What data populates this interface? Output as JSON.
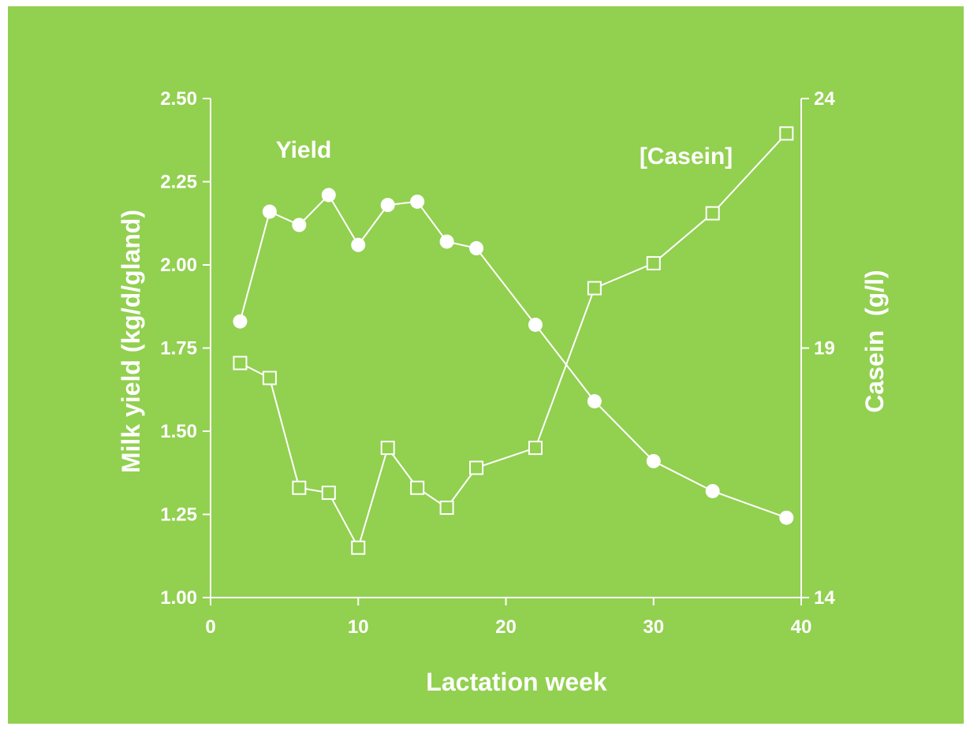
{
  "colors": {
    "background": "#92d050",
    "foreground": "#ffffff"
  },
  "chart_data": {
    "type": "line",
    "xlabel": "Lactation week",
    "ylabel": "Milk yield (kg/d/gland)",
    "y2label": "Casein  (g/l)",
    "xlim": [
      0,
      40
    ],
    "ylim": [
      1.0,
      2.5
    ],
    "y2lim": [
      14,
      24
    ],
    "x_ticks": [
      "0",
      "10",
      "20",
      "30",
      "40"
    ],
    "y_ticks": [
      "1.00",
      "1.25",
      "1.50",
      "1.75",
      "2.00",
      "2.25",
      "2.50"
    ],
    "y2_ticks": [
      "14",
      "19",
      "24"
    ],
    "grid": false,
    "series": [
      {
        "name": "Yield",
        "axis": "left",
        "marker": "filled-circle",
        "x": [
          2,
          4,
          6,
          8,
          10,
          12,
          14,
          16,
          18,
          22,
          26,
          30,
          34,
          39
        ],
        "y": [
          1.83,
          2.16,
          2.12,
          2.21,
          2.06,
          2.18,
          2.19,
          2.07,
          2.05,
          1.82,
          1.59,
          1.41,
          1.32,
          1.24
        ]
      },
      {
        "name": "[Casein]",
        "axis": "right",
        "marker": "open-square",
        "x": [
          2,
          4,
          6,
          8,
          10,
          12,
          14,
          16,
          18,
          22,
          26,
          30,
          34,
          39
        ],
        "y": [
          18.7,
          18.4,
          16.2,
          16.1,
          15.0,
          17.0,
          16.2,
          15.8,
          16.6,
          17.0,
          20.2,
          20.7,
          21.7,
          23.3
        ]
      }
    ]
  }
}
